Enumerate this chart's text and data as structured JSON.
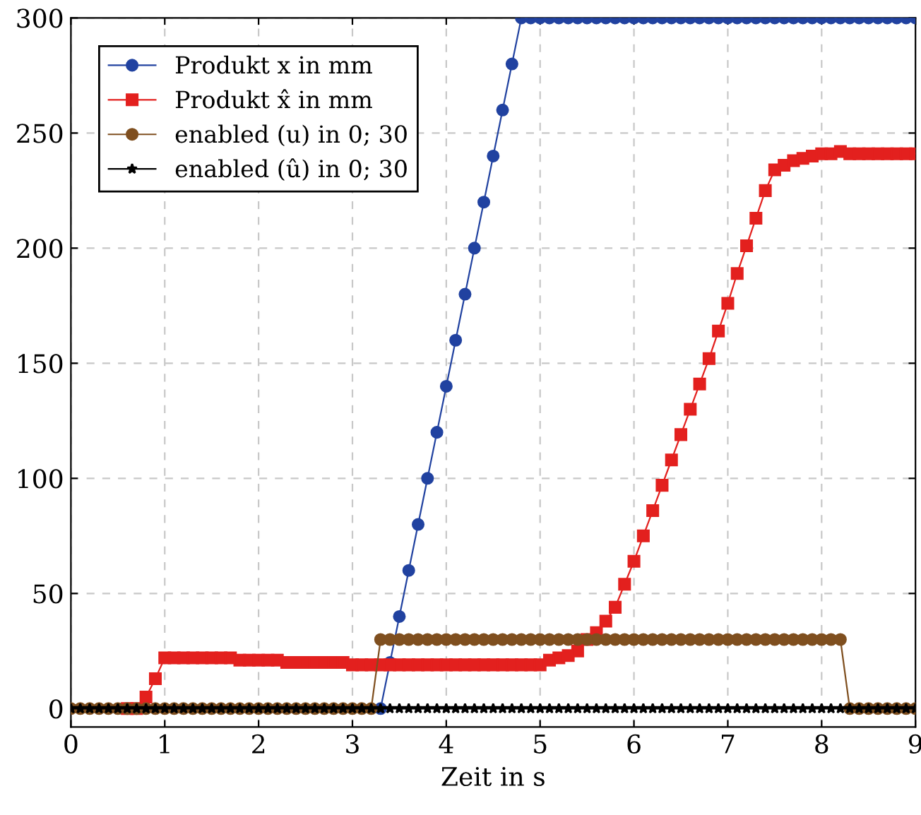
{
  "chart_data": {
    "type": "line",
    "xlabel": "Zeit in s",
    "xlim": [
      0,
      9
    ],
    "xticks": [
      0,
      1,
      2,
      3,
      4,
      5,
      6,
      7,
      8,
      9
    ],
    "ylim": [
      -8,
      300
    ],
    "yticks": [
      0,
      50,
      100,
      150,
      200,
      250,
      300
    ],
    "grid": true,
    "legend": "top left",
    "line_style": "solid",
    "x": [
      0,
      0.1,
      0.2,
      0.3,
      0.4,
      0.5,
      0.6,
      0.7,
      0.8,
      0.9,
      1,
      1.1,
      1.2,
      1.3,
      1.4,
      1.5,
      1.6,
      1.7,
      1.8,
      1.9,
      2,
      2.1,
      2.2,
      2.3,
      2.4,
      2.5,
      2.6,
      2.7,
      2.8,
      2.9,
      3,
      3.1,
      3.2,
      3.3,
      3.4,
      3.5,
      3.6,
      3.7,
      3.8,
      3.9,
      4,
      4.1,
      4.2,
      4.3,
      4.4,
      4.5,
      4.6,
      4.7,
      4.8,
      4.9,
      5,
      5.1,
      5.2,
      5.3,
      5.4,
      5.5,
      5.6,
      5.7,
      5.8,
      5.9,
      6,
      6.1,
      6.2,
      6.3,
      6.4,
      6.5,
      6.6,
      6.7,
      6.8,
      6.9,
      7,
      7.1,
      7.2,
      7.3,
      7.4,
      7.5,
      7.6,
      7.7,
      7.8,
      7.9,
      8,
      8.1,
      8.2,
      8.3,
      8.4,
      8.5,
      8.6,
      8.7,
      8.8,
      8.9,
      9
    ],
    "series": [
      {
        "name": "Produkt x in mm",
        "color": "#2142a0",
        "marker": "circle",
        "values": [
          null,
          null,
          null,
          null,
          null,
          null,
          null,
          null,
          null,
          null,
          null,
          null,
          null,
          null,
          null,
          null,
          null,
          null,
          null,
          null,
          null,
          null,
          null,
          null,
          null,
          null,
          null,
          null,
          null,
          null,
          null,
          null,
          null,
          0,
          20,
          40,
          60,
          80,
          100,
          120,
          140,
          160,
          180,
          200,
          220,
          240,
          260,
          280,
          300,
          300,
          300,
          300,
          300,
          300,
          300,
          300,
          300,
          300,
          300,
          300,
          300,
          300,
          300,
          300,
          300,
          300,
          300,
          300,
          300,
          300,
          300,
          300,
          300,
          300,
          300,
          300,
          300,
          300,
          300,
          300,
          300,
          300,
          300,
          300,
          300,
          300,
          300,
          300,
          300,
          300,
          300
        ]
      },
      {
        "name": "Produkt x̂ in mm",
        "color": "#e3201e",
        "marker": "square",
        "values": [
          null,
          null,
          null,
          null,
          null,
          null,
          0,
          0,
          5,
          13,
          22,
          22,
          22,
          22,
          22,
          22,
          22,
          22,
          21,
          21,
          21,
          21,
          21,
          20,
          20,
          20,
          20,
          20,
          20,
          20,
          19,
          19,
          19,
          19,
          19,
          19,
          19,
          19,
          19,
          19,
          19,
          19,
          19,
          19,
          19,
          19,
          19,
          19,
          19,
          19,
          19,
          21,
          22,
          23,
          25,
          30,
          33,
          38,
          44,
          54,
          64,
          75,
          86,
          97,
          108,
          119,
          130,
          141,
          152,
          164,
          176,
          189,
          201,
          213,
          225,
          234,
          236,
          238,
          239,
          240,
          241,
          241,
          242,
          241,
          241,
          241,
          241,
          241,
          241,
          241,
          241
        ]
      },
      {
        "name": "enabled (u) in 0; 30",
        "color": "#7f4f1f",
        "marker": "circle",
        "values": [
          0,
          0,
          0,
          0,
          0,
          0,
          0,
          0,
          0,
          0,
          0,
          0,
          0,
          0,
          0,
          0,
          0,
          0,
          0,
          0,
          0,
          0,
          0,
          0,
          0,
          0,
          0,
          0,
          0,
          0,
          0,
          0,
          0,
          30,
          30,
          30,
          30,
          30,
          30,
          30,
          30,
          30,
          30,
          30,
          30,
          30,
          30,
          30,
          30,
          30,
          30,
          30,
          30,
          30,
          30,
          30,
          30,
          30,
          30,
          30,
          30,
          30,
          30,
          30,
          30,
          30,
          30,
          30,
          30,
          30,
          30,
          30,
          30,
          30,
          30,
          30,
          30,
          30,
          30,
          30,
          30,
          30,
          30,
          0,
          0,
          0,
          0,
          0,
          0,
          0,
          0
        ]
      },
      {
        "name": "enabled (û) in 0; 30",
        "color": "#000000",
        "marker": "star",
        "values": [
          0,
          0,
          0,
          0,
          0,
          0,
          0,
          0,
          0,
          0,
          0,
          0,
          0,
          0,
          0,
          0,
          0,
          0,
          0,
          0,
          0,
          0,
          0,
          0,
          0,
          0,
          0,
          0,
          0,
          0,
          0,
          0,
          0,
          0,
          0,
          0,
          0,
          0,
          0,
          0,
          0,
          0,
          0,
          0,
          0,
          0,
          0,
          0,
          0,
          0,
          0,
          0,
          0,
          0,
          0,
          0,
          0,
          0,
          0,
          0,
          0,
          0,
          0,
          0,
          0,
          0,
          0,
          0,
          0,
          0,
          0,
          0,
          0,
          0,
          0,
          0,
          0,
          0,
          0,
          0,
          0,
          0,
          0,
          0,
          0,
          0,
          0,
          0,
          0,
          0,
          0
        ]
      }
    ]
  }
}
